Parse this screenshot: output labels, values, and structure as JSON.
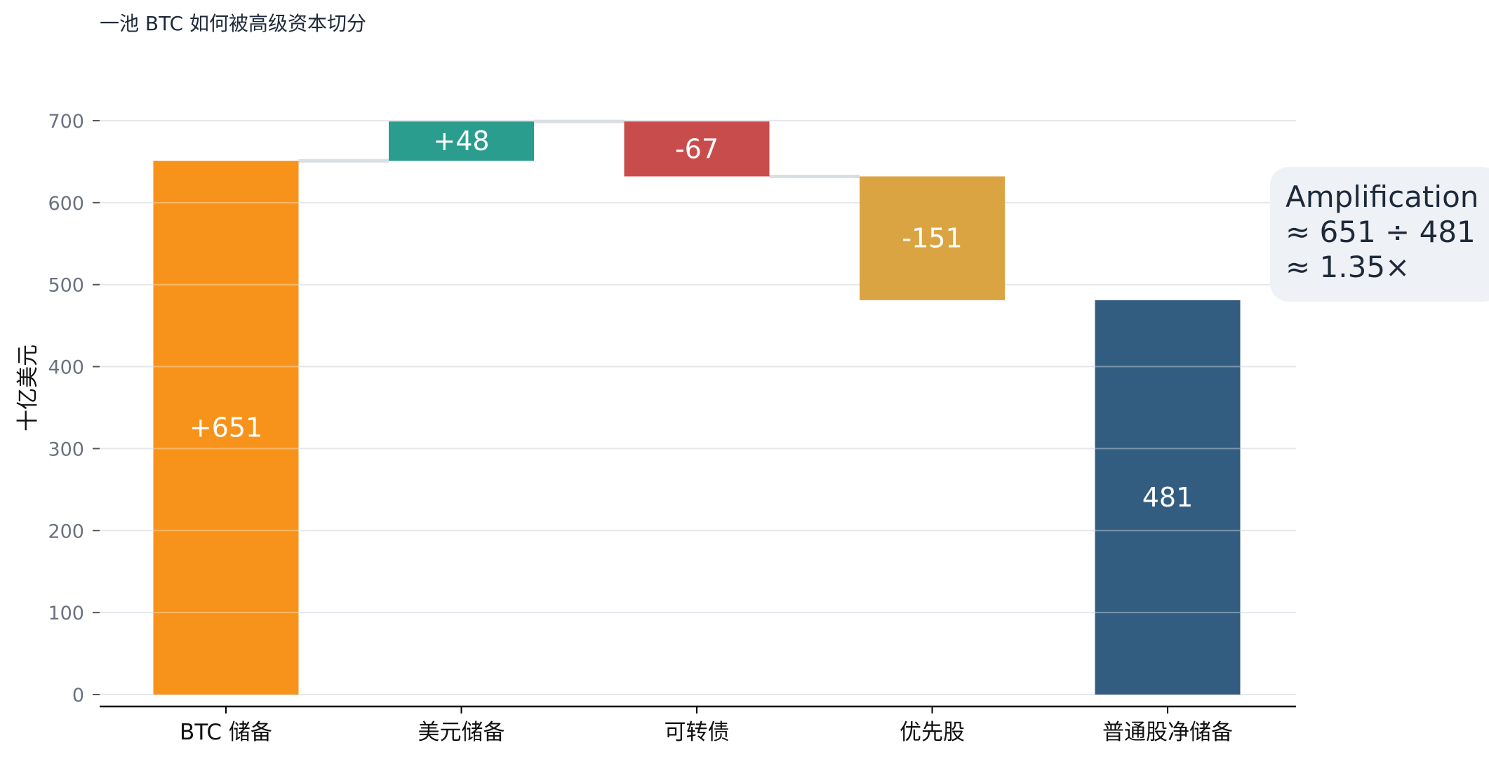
{
  "chart_data": {
    "type": "waterfall",
    "title": "一池 BTC 如何被高级资本切分",
    "ylabel": "十亿美元",
    "xlabel": "",
    "ylim": [
      0,
      700
    ],
    "yticks": [
      0,
      100,
      200,
      300,
      400,
      500,
      600,
      700
    ],
    "grid": true,
    "categories": [
      "BTC 储备",
      "美元储备",
      "可转债",
      "优先股",
      "普通股净储备"
    ],
    "values": [
      651,
      48,
      -67,
      -151,
      481
    ],
    "bar_kinds": [
      "total",
      "delta",
      "delta",
      "delta",
      "total"
    ],
    "value_labels": [
      "+651",
      "+48",
      "-67",
      "-151",
      "481"
    ],
    "colors": [
      "#F7931A",
      "#2A9D8F",
      "#C94C4C",
      "#DBA443",
      "#335C81"
    ],
    "annotation": {
      "lines": [
        "Amplification",
        "≈ 651 ÷ 481",
        "≈ 1.35×"
      ],
      "background": "#EEF2F6",
      "text_color": "#1E2A3A"
    },
    "connector_color": "#D9DEE4",
    "grid_color": "#E5E7EB",
    "axis_color": "#000000",
    "tick_label_color": "#6B7280"
  }
}
